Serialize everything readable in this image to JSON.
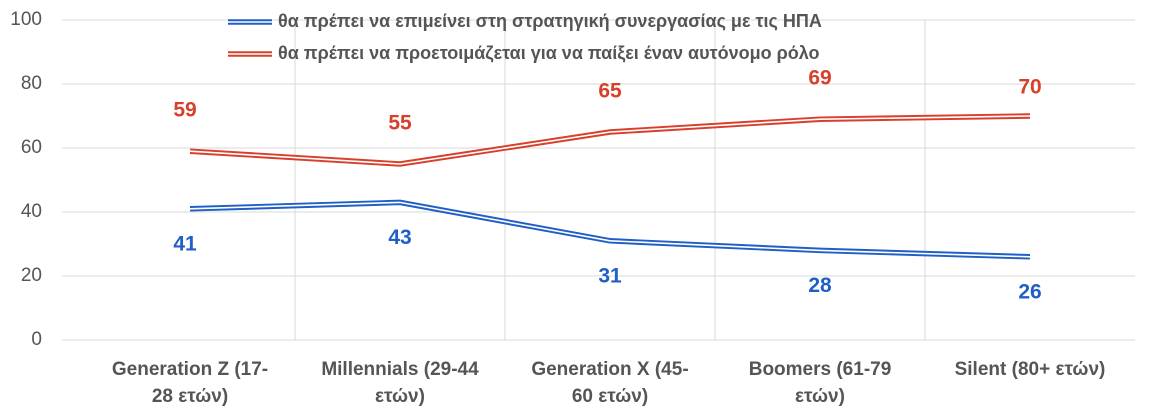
{
  "chart_data": {
    "type": "line",
    "categories": [
      [
        "Generation Z  (17-",
        "28 ετών)"
      ],
      [
        "Millennials (29-44",
        "ετών)"
      ],
      [
        "Generation X  (45-",
        "60 ετών)"
      ],
      [
        "Boomers (61-79",
        "ετών)"
      ],
      [
        "Silent  (80+ ετών)"
      ]
    ],
    "series": [
      {
        "name": "θα πρέπει να επιμείνει στη στρατηγική συνεργασίας με τις ΗΠΑ",
        "color": "#1f5fc6",
        "values": [
          41,
          43,
          31,
          28,
          26
        ]
      },
      {
        "name": "θα πρέπει να προετοιμάζεται για να παίξει έναν αυτόνομο ρόλο",
        "color": "#d7402b",
        "values": [
          59,
          55,
          65,
          69,
          70
        ]
      }
    ],
    "ylim": [
      0,
      100
    ],
    "yticks": [
      0,
      20,
      40,
      60,
      80,
      100
    ],
    "grid": true,
    "legend": "top"
  }
}
